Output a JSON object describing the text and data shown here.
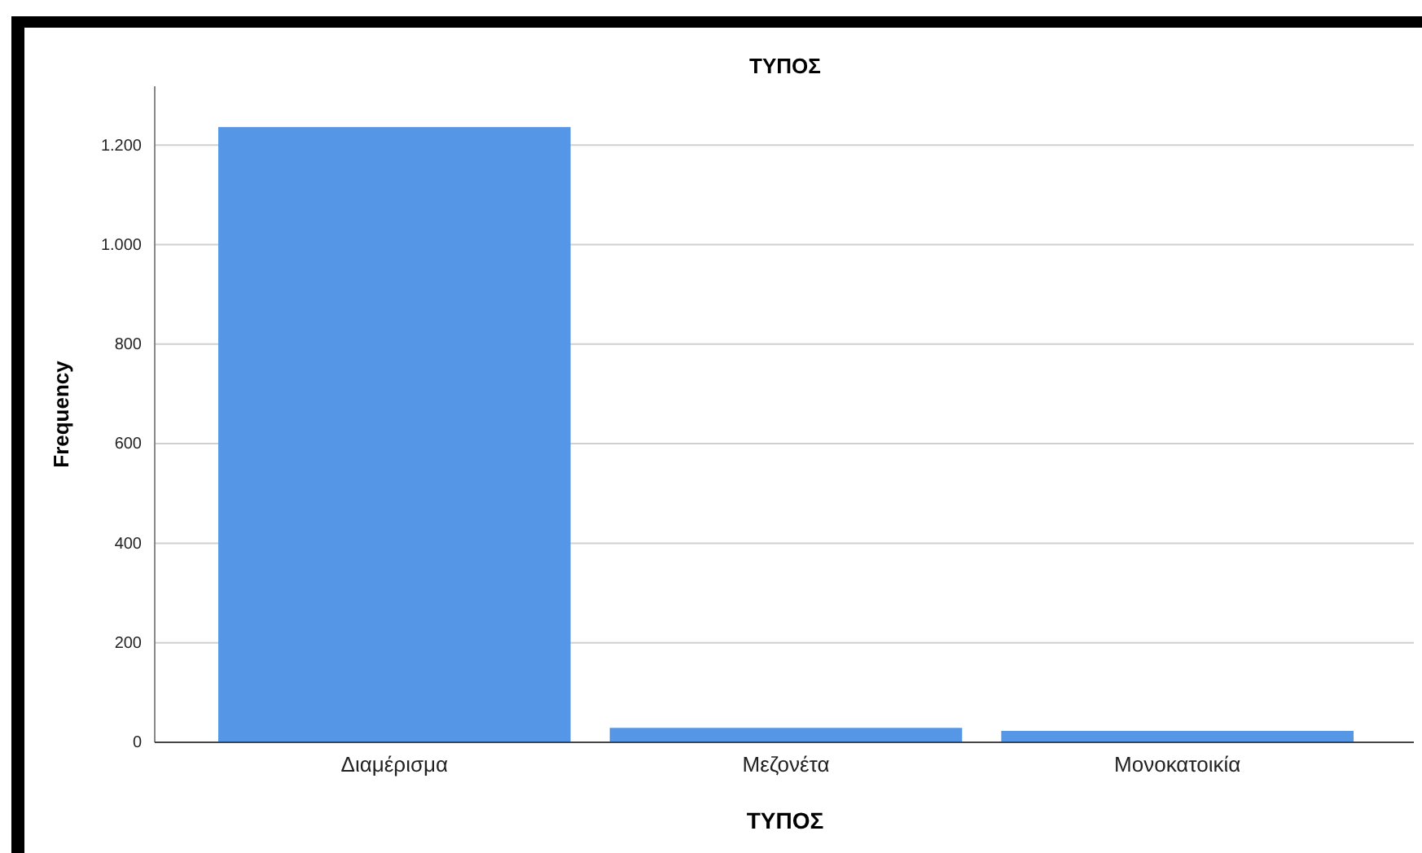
{
  "chart_data": {
    "type": "bar",
    "title": "ΤΥΠΟΣ",
    "xlabel": "ΤΥΠΟΣ",
    "ylabel": "Frequency",
    "categories": [
      "Διαμέρισμα",
      "Μεζονέτα",
      "Μονοκατοικία"
    ],
    "values": [
      1236,
      29,
      23
    ],
    "color": "#5596e6",
    "ylim": [
      0,
      1318
    ],
    "yticks": [
      0,
      200,
      400,
      600,
      800,
      {
        "value": 1000,
        "label": "1.000"
      },
      {
        "value": 1200,
        "label": "1.200"
      }
    ],
    "grid": "y"
  }
}
